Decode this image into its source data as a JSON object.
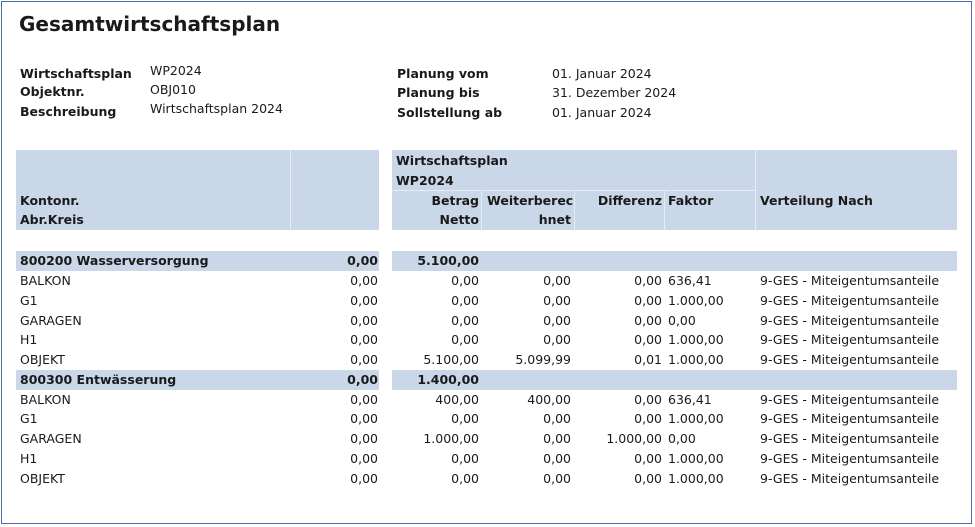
{
  "title": "Gesamtwirtschaftsplan",
  "meta_left": [
    {
      "label": "Wirtschaftsplan",
      "value": "WP2024"
    },
    {
      "label": "Objektnr.",
      "value": "OBJ010"
    },
    {
      "label": "Beschreibung",
      "value": "Wirtschaftsplan 2024"
    }
  ],
  "meta_right": [
    {
      "label": "Planung vom",
      "value": "01. Januar 2024"
    },
    {
      "label": "Planung bis",
      "value": "31. Dezember 2024"
    },
    {
      "label": "Sollstellung ab",
      "value": "01. Januar 2024"
    }
  ],
  "header": {
    "plan_label": "Wirtschaftsplan",
    "plan_value": "WP2024",
    "konto": "Kontonr.",
    "abr": "Abr.Kreis",
    "betrag1": "Betrag",
    "betrag2": "Netto",
    "weiter1": "Weiterberec",
    "weiter2": "hnet",
    "differenz": "Differenz",
    "faktor": "Faktor",
    "verteilung": "Verteilung Nach"
  },
  "groups": [
    {
      "name": "800200 Wasserversorgung",
      "left_total": "0,00",
      "betrag_total": "5.100,00",
      "rows": [
        {
          "kreis": "BALKON",
          "left": "0,00",
          "betrag": "0,00",
          "weiter": "0,00",
          "diff": "0,00",
          "faktor": "636,41",
          "vert": "9-GES - Miteigentumsanteile"
        },
        {
          "kreis": "G1",
          "left": "0,00",
          "betrag": "0,00",
          "weiter": "0,00",
          "diff": "0,00",
          "faktor": "1.000,00",
          "vert": "9-GES - Miteigentumsanteile"
        },
        {
          "kreis": "GARAGEN",
          "left": "0,00",
          "betrag": "0,00",
          "weiter": "0,00",
          "diff": "0,00",
          "faktor": "0,00",
          "vert": "9-GES - Miteigentumsanteile"
        },
        {
          "kreis": "H1",
          "left": "0,00",
          "betrag": "0,00",
          "weiter": "0,00",
          "diff": "0,00",
          "faktor": "1.000,00",
          "vert": "9-GES - Miteigentumsanteile"
        },
        {
          "kreis": "OBJEKT",
          "left": "0,00",
          "betrag": "5.100,00",
          "weiter": "5.099,99",
          "diff": "0,01",
          "faktor": "1.000,00",
          "vert": "9-GES - Miteigentumsanteile"
        }
      ]
    },
    {
      "name": "800300 Entwässerung",
      "left_total": "0,00",
      "betrag_total": "1.400,00",
      "rows": [
        {
          "kreis": "BALKON",
          "left": "0,00",
          "betrag": "400,00",
          "weiter": "400,00",
          "diff": "0,00",
          "faktor": "636,41",
          "vert": "9-GES - Miteigentumsanteile"
        },
        {
          "kreis": "G1",
          "left": "0,00",
          "betrag": "0,00",
          "weiter": "0,00",
          "diff": "0,00",
          "faktor": "1.000,00",
          "vert": "9-GES - Miteigentumsanteile"
        },
        {
          "kreis": "GARAGEN",
          "left": "0,00",
          "betrag": "1.000,00",
          "weiter": "0,00",
          "diff": "1.000,00",
          "faktor": "0,00",
          "vert": "9-GES - Miteigentumsanteile"
        },
        {
          "kreis": "H1",
          "left": "0,00",
          "betrag": "0,00",
          "weiter": "0,00",
          "diff": "0,00",
          "faktor": "1.000,00",
          "vert": "9-GES - Miteigentumsanteile"
        },
        {
          "kreis": "OBJEKT",
          "left": "0,00",
          "betrag": "0,00",
          "weiter": "0,00",
          "diff": "0,00",
          "faktor": "1.000,00",
          "vert": "9-GES - Miteigentumsanteile"
        }
      ]
    }
  ]
}
